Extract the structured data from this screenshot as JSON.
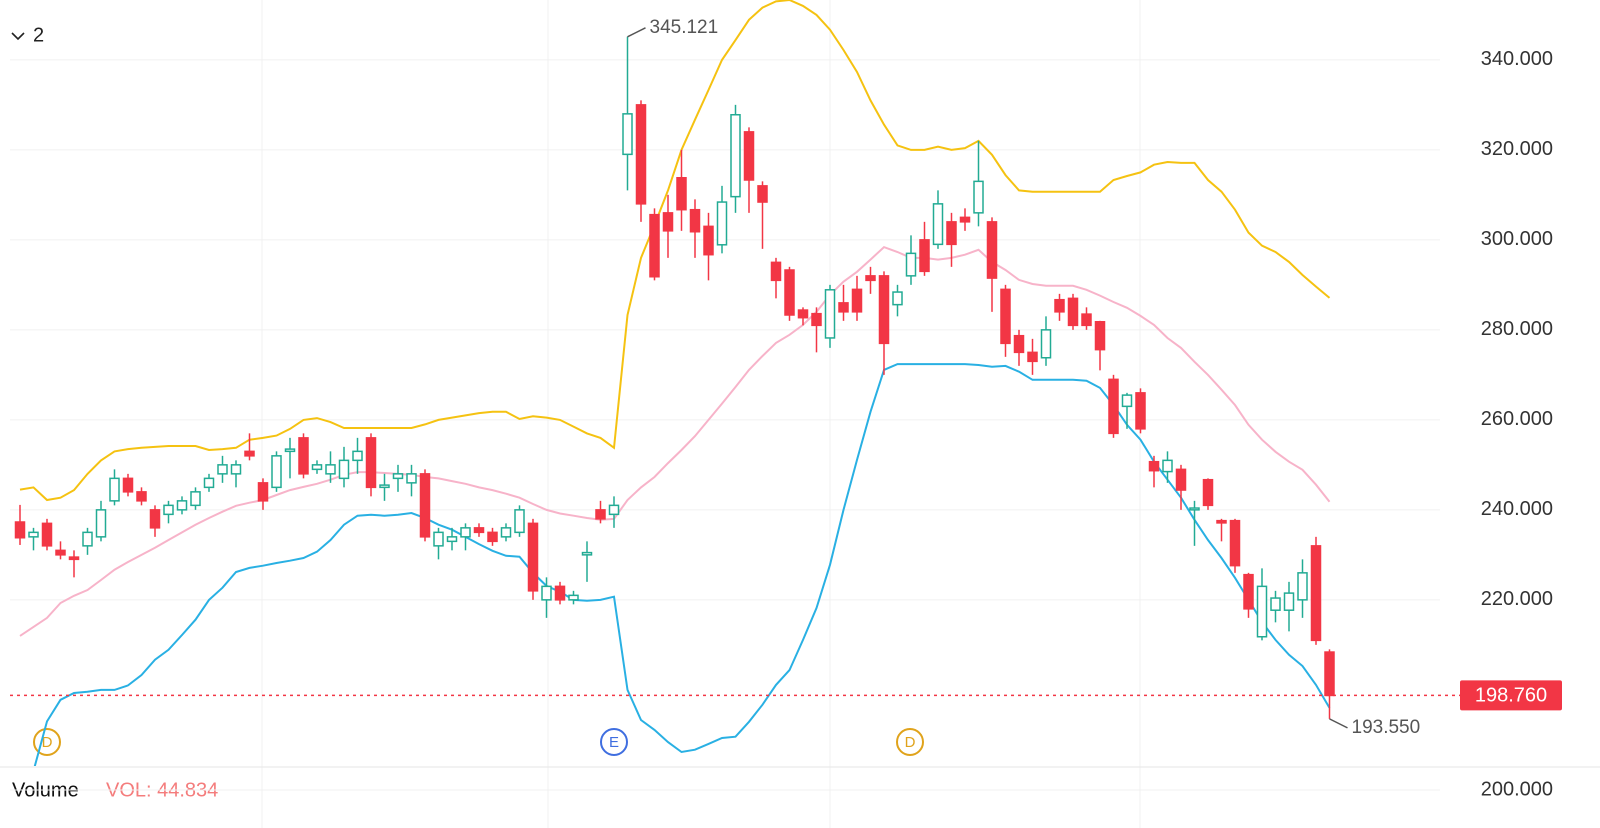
{
  "chart_data": {
    "type": "candlestick",
    "collapsed_indicators": 2,
    "categories": [
      null,
      null,
      null,
      null,
      null,
      null,
      null,
      null,
      null,
      null,
      null,
      null,
      null,
      null,
      null,
      null,
      null,
      null,
      null,
      null,
      null,
      null,
      null,
      null,
      null,
      null,
      null,
      null,
      null,
      null,
      null,
      null,
      null,
      null,
      null,
      null,
      null,
      null,
      null,
      null,
      null,
      null,
      null,
      null,
      null,
      null,
      null,
      null,
      null,
      null,
      null,
      null,
      null,
      null,
      null,
      null,
      null,
      null,
      null,
      null,
      null,
      null,
      null,
      null,
      null,
      null,
      null,
      null,
      null,
      null,
      null,
      null,
      null,
      null,
      null,
      null,
      null,
      null,
      null,
      null,
      null,
      null,
      null,
      null,
      null,
      null,
      null,
      null,
      null,
      null,
      null,
      null,
      null,
      null,
      null,
      null,
      null,
      null
    ],
    "open": [
      237.3,
      234,
      237,
      231,
      229.5,
      232,
      234,
      242,
      247,
      244,
      240,
      239,
      240,
      241,
      245,
      248,
      248,
      253,
      246,
      245,
      253,
      256,
      249,
      248,
      247,
      251,
      256,
      245,
      247,
      246,
      248,
      232,
      233,
      234,
      236,
      235,
      234,
      235,
      237,
      220,
      223,
      220,
      230,
      240,
      239,
      319,
      330,
      305.6,
      306,
      313.8,
      306.7,
      303,
      298.9,
      309.6,
      324,
      312,
      295,
      293.3,
      284.4,
      283.6,
      278.2,
      286,
      289,
      292,
      292,
      285.6,
      292,
      300,
      299,
      304,
      305,
      306,
      304,
      289,
      278.7,
      275,
      273.8,
      286.7,
      287,
      283.5,
      281.8,
      269,
      263,
      266,
      250.7,
      248.5,
      249,
      240,
      246.7,
      237.6,
      237.6,
      225.6,
      211.8,
      217.7,
      217.7,
      220,
      232,
      208.4
    ],
    "high": [
      241.1,
      236,
      238,
      233,
      231,
      236,
      242,
      249,
      248,
      245,
      241,
      242,
      243,
      245,
      248,
      252,
      251,
      257,
      247,
      253,
      256,
      257,
      251,
      253,
      254,
      256,
      257,
      248,
      250,
      250,
      249,
      236,
      236,
      237,
      237,
      236,
      237,
      241,
      238,
      225,
      224,
      222,
      233,
      242,
      243,
      345.121,
      331,
      307,
      310,
      320,
      309,
      306,
      312,
      330,
      325,
      313,
      296,
      294,
      285,
      285,
      290,
      290,
      292,
      294,
      293,
      290,
      301,
      304,
      311,
      306,
      307,
      322,
      305,
      290,
      280,
      278,
      283,
      288,
      288,
      285,
      282,
      270,
      266,
      267,
      252,
      253,
      250,
      242,
      247,
      238,
      238,
      226,
      227,
      222,
      224,
      229,
      234,
      209
    ],
    "low": [
      232.2,
      231,
      231,
      229,
      225,
      230,
      233,
      241,
      243,
      241,
      234,
      237,
      239,
      240,
      244,
      246,
      245,
      251,
      240,
      244,
      247,
      247,
      248,
      246,
      245,
      248,
      243,
      242,
      244,
      243,
      233,
      229,
      231,
      231,
      234,
      232,
      233,
      234,
      220,
      216,
      219,
      219,
      224,
      237,
      236,
      311,
      304,
      291,
      296,
      302,
      296,
      291,
      297,
      306,
      306,
      298,
      287,
      282,
      281,
      275,
      276,
      282,
      282,
      288,
      270,
      283,
      290,
      292,
      298,
      294,
      302,
      303,
      284,
      274,
      272,
      270,
      272,
      282,
      280,
      280,
      271,
      256,
      258,
      257,
      245,
      246,
      240,
      232,
      240,
      233,
      226,
      216,
      211,
      215,
      213,
      216,
      210,
      193.55
    ],
    "close": [
      233.8,
      235,
      232,
      230,
      229,
      235,
      240,
      247,
      244,
      242,
      236,
      241,
      242,
      244,
      247,
      250,
      250,
      252,
      242,
      252,
      253.5,
      248,
      250,
      250,
      251,
      253,
      245,
      245.5,
      248,
      248,
      234,
      235,
      234,
      236,
      235,
      233,
      236,
      240,
      222,
      223,
      220,
      221,
      230.5,
      238,
      241,
      328,
      308,
      291.8,
      302,
      306.7,
      301.8,
      296.7,
      308.4,
      327.8,
      313.3,
      308.4,
      291,
      283.3,
      282.7,
      281,
      288.9,
      284,
      284,
      291,
      277,
      288.4,
      297,
      293,
      308,
      299,
      304,
      313,
      291.5,
      277,
      275,
      273,
      280,
      284,
      281,
      281,
      275.6,
      257,
      265.5,
      258,
      248.7,
      251,
      244.4,
      240.4,
      241,
      237.1,
      227.6,
      218,
      223,
      220.4,
      221.5,
      226,
      211,
      198.76
    ],
    "up_color": "#22ab94",
    "down_color": "#f23645",
    "series": [
      {
        "color": "#f5c211",
        "values": [
          244.5,
          245,
          242.2,
          242.7,
          244.4,
          248,
          251,
          253,
          253.5,
          253.8,
          254,
          254.2,
          254.2,
          254.2,
          253.3,
          253.5,
          253.8,
          255.6,
          256,
          256.5,
          258,
          260,
          260.4,
          259.5,
          258.2,
          258.2,
          258.2,
          258.2,
          258.2,
          258.2,
          259,
          260,
          260.5,
          261,
          261.5,
          261.8,
          261.8,
          260.2,
          260.8,
          260.5,
          260,
          258.5,
          257,
          256,
          253.8,
          283.3,
          296,
          303.3,
          311,
          320,
          326.7,
          333.3,
          340,
          344.4,
          348.9,
          351.6,
          353,
          353.3,
          352,
          350,
          346.7,
          342.2,
          337.3,
          331,
          325.6,
          321,
          320,
          320,
          320.7,
          320,
          320.4,
          322,
          318.9,
          314.4,
          311,
          310.7,
          310.7,
          310.7,
          310.7,
          310.7,
          310.7,
          313.3,
          314.2,
          315,
          316.7,
          317.3,
          317.1,
          317.1,
          313.3,
          310.7,
          306.7,
          301.6,
          298.7,
          297.3,
          295.1,
          292.2,
          289.6,
          287.1
        ]
      },
      {
        "color": "#f7b3c9",
        "values": [
          212,
          214,
          216,
          219.3,
          220.9,
          222.2,
          224.4,
          226.7,
          228.4,
          230,
          231.6,
          233.3,
          235,
          236.7,
          238.2,
          239.6,
          240.9,
          241.6,
          242.2,
          243.3,
          244.4,
          245.1,
          245.8,
          246.7,
          247.8,
          248.4,
          248.4,
          248.2,
          248,
          247.8,
          247.3,
          247,
          246.4,
          245.8,
          245,
          244.4,
          243.6,
          242.7,
          241.3,
          240,
          239.2,
          238.7,
          238.2,
          237.8,
          238,
          242.2,
          245,
          247.3,
          250.4,
          253.3,
          256.4,
          260,
          263.6,
          267.3,
          271.1,
          274.2,
          277.1,
          278.9,
          281.1,
          284,
          287.8,
          290.7,
          292.9,
          295.6,
          298.4,
          297.3,
          296,
          296,
          295.6,
          296,
          296.7,
          297.8,
          295.1,
          293.3,
          291.1,
          290.2,
          289.8,
          289.8,
          289.8,
          288.9,
          287.6,
          286.2,
          284.9,
          283.1,
          281.1,
          278.2,
          276,
          272.9,
          270,
          266.7,
          263.3,
          258.9,
          255.6,
          252.9,
          250.7,
          248.9,
          245.6,
          241.8
        ]
      },
      {
        "color": "#29b0e3",
        "values": [
          177,
          182,
          193,
          197.8,
          199.3,
          199.6,
          200,
          200,
          201,
          203.3,
          206.7,
          208.9,
          212.2,
          215.6,
          220,
          222.7,
          226.2,
          227.1,
          227.6,
          228.2,
          228.7,
          229.3,
          230.7,
          233.3,
          236.7,
          238.7,
          238.9,
          238.7,
          238.9,
          239.3,
          238.2,
          236.7,
          235.6,
          234,
          232.4,
          230.9,
          229.8,
          229.6,
          226,
          223.1,
          221.8,
          220,
          219.8,
          220,
          220.7,
          200,
          193.3,
          191.1,
          188.4,
          186.2,
          186.7,
          188,
          189.3,
          189.6,
          192.9,
          196.7,
          201.1,
          204.4,
          211.1,
          218.2,
          227.8,
          240,
          251.1,
          261.8,
          271.1,
          272.4,
          272.4,
          272.4,
          272.4,
          272.4,
          272.4,
          272.2,
          271.8,
          272,
          270.7,
          268.9,
          268.9,
          268.9,
          268.9,
          268.7,
          267.1,
          263.3,
          258.9,
          255.6,
          250.7,
          246.7,
          242.7,
          237.8,
          233.3,
          229.3,
          224.9,
          220,
          215.1,
          211.1,
          207.8,
          205.3,
          201.1,
          196
        ]
      }
    ],
    "ylim": [
      183.3,
      353.3
    ],
    "yticks": [
      {
        "value": 220,
        "label": "220.000"
      },
      {
        "value": 240,
        "label": "240.000"
      },
      {
        "value": 260,
        "label": "260.000"
      },
      {
        "value": 280,
        "label": "280.000"
      },
      {
        "value": 300,
        "label": "300.000"
      },
      {
        "value": 320,
        "label": "320.000"
      },
      {
        "value": 340,
        "label": "340.000"
      }
    ],
    "grid": true,
    "annotations": [
      {
        "value": 345.121,
        "label": "345.121"
      },
      {
        "value": 193.55,
        "label": "193.550"
      }
    ],
    "last_price": {
      "value": 198.76,
      "label": "198.760"
    },
    "events": [
      "D",
      "E",
      "D"
    ],
    "volume": {
      "title": "Volume",
      "indicator": "VOL: 44.834",
      "ylim": [
        0,
        316
      ],
      "yticks": [
        {
          "value": 200,
          "label": "200.000"
        }
      ]
    }
  }
}
